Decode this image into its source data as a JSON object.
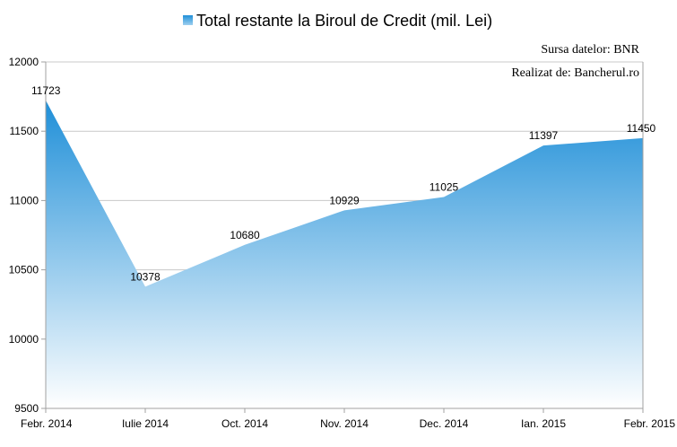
{
  "chart_data": {
    "type": "area",
    "title": "",
    "xlabel": "",
    "ylabel": "",
    "categories": [
      "Febr. 2014",
      "Iulie 2014",
      "Oct. 2014",
      "Nov. 2014",
      "Dec. 2014",
      "Ian. 2015",
      "Febr. 2015"
    ],
    "series": [
      {
        "name": "Total restante la Biroul de Credit (mil. Lei)",
        "values": [
          11723,
          10378,
          10680,
          10929,
          11025,
          11397,
          11450
        ]
      }
    ],
    "ylim": [
      9500,
      12000
    ],
    "yticks": [
      9500,
      10000,
      10500,
      11000,
      11500,
      12000
    ],
    "grid": true,
    "legend_position": "top",
    "data_labels": true,
    "colors": {
      "top": "#1f8fd8",
      "bottom": "#ffffff",
      "grid": "#c8c8c8",
      "axis": "#a0a0a0"
    }
  },
  "annotations": {
    "source": "Sursa datelor: BNR",
    "author": "Realizat de: Bancherul.ro"
  }
}
